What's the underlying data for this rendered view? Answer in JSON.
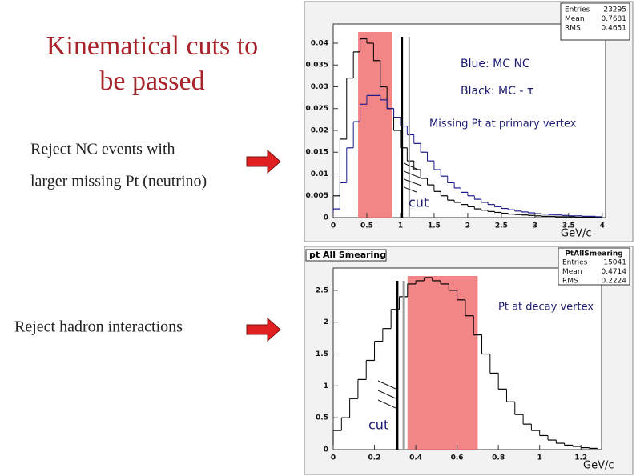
{
  "slide": {
    "title": [
      "Kinematical cuts to",
      "be passed"
    ],
    "notes": [
      [
        "Reject NC events with",
        "larger missing Pt (neutrino)"
      ],
      [
        "Reject hadron interactions"
      ]
    ]
  },
  "chart_data": [
    {
      "type": "histogram",
      "bins": [
        0,
        0.1,
        0.2,
        0.3,
        0.4,
        0.5,
        0.6,
        0.7,
        0.8,
        0.9,
        1,
        1.1,
        1.2,
        1.3,
        1.4,
        1.5,
        1.6,
        1.7,
        1.8,
        1.9,
        2,
        2.1,
        2.2,
        2.3,
        2.4,
        2.5,
        2.6,
        2.7,
        2.8,
        2.9,
        3,
        3.1,
        3.2,
        3.3,
        3.4,
        3.5,
        3.6,
        3.7,
        3.8,
        3.9,
        4
      ],
      "series": [
        {
          "color": "#000000",
          "values": [
            0.005,
            0.018,
            0.032,
            0.038,
            0.041,
            0.04,
            0.036,
            0.03,
            0.025,
            0.02,
            0.016,
            0.013,
            0.011,
            0.009,
            0.0075,
            0.006,
            0.005,
            0.004,
            0.0035,
            0.003,
            0.0025,
            0.002,
            0.0017,
            0.0014,
            0.0012,
            0.001,
            0.0008,
            0.0007,
            0.0006,
            0.0005,
            0.0004,
            0.0003,
            0.0003,
            0.0002,
            0.0002,
            0.0002,
            0.0001,
            0.0001,
            0.0001,
            0.0001
          ]
        },
        {
          "color": "#1a1a8a",
          "values": [
            0.002,
            0.008,
            0.016,
            0.022,
            0.026,
            0.028,
            0.028,
            0.027,
            0.025,
            0.023,
            0.021,
            0.019,
            0.017,
            0.015,
            0.013,
            0.011,
            0.0095,
            0.008,
            0.0068,
            0.0058,
            0.005,
            0.0042,
            0.0035,
            0.003,
            0.0025,
            0.0021,
            0.0018,
            0.0015,
            0.0013,
            0.0011,
            0.0009,
            0.0008,
            0.0007,
            0.0006,
            0.0005,
            0.0004,
            0.0004,
            0.0003,
            0.0003,
            0.0002
          ]
        }
      ],
      "xlim": [
        0,
        4.05
      ],
      "ylim": [
        0,
        0.0444
      ],
      "xticks": [
        0,
        0.5,
        1,
        1.5,
        2,
        2.5,
        3,
        3.5,
        4
      ],
      "yticks": [
        0,
        0.005,
        0.01,
        0.015,
        0.02,
        0.025,
        0.03,
        0.035,
        0.04
      ],
      "band": [
        0.37,
        0.88
      ],
      "cut": 1.02,
      "ref_line": 1.13,
      "stats": {
        "labels": [
          "Entries",
          "Mean",
          "RMS"
        ],
        "values": [
          23295,
          0.7681,
          0.4651
        ]
      },
      "annotations": [
        "Blue: MC  NC",
        "Black: MC - τ",
        "Missing Pt at primary vertex",
        "cut",
        "GeV/c"
      ]
    },
    {
      "type": "histogram",
      "title": "pt All Smearing",
      "bins": [
        0,
        0.04,
        0.08,
        0.12,
        0.16,
        0.2,
        0.24,
        0.28,
        0.32,
        0.36,
        0.4,
        0.44,
        0.48,
        0.52,
        0.56,
        0.6,
        0.64,
        0.68,
        0.72,
        0.76,
        0.8,
        0.84,
        0.88,
        0.92,
        0.96,
        1,
        1.04,
        1.08,
        1.12,
        1.16,
        1.2,
        1.24,
        1.28
      ],
      "series": [
        {
          "color": "#000000",
          "values": [
            0.3,
            0.5,
            0.8,
            1.1,
            1.4,
            1.7,
            1.9,
            2.2,
            2.4,
            2.6,
            2.65,
            2.7,
            2.65,
            2.6,
            2.5,
            2.35,
            2.1,
            1.8,
            1.5,
            1.2,
            0.95,
            0.75,
            0.55,
            0.4,
            0.3,
            0.22,
            0.15,
            0.1,
            0.07,
            0.05,
            0.03,
            0.02
          ]
        }
      ],
      "xlim": [
        0,
        1.3
      ],
      "ylim": [
        0,
        2.85
      ],
      "xticks": [
        0,
        0.2,
        0.4,
        0.6,
        0.8,
        1,
        1.2
      ],
      "yticks": [
        0,
        0.5,
        1,
        1.5,
        2,
        2.5
      ],
      "band": [
        0.36,
        0.7
      ],
      "cut": 0.31,
      "ref_line": 0.34,
      "stats": {
        "name": "PtAllSmearing",
        "labels": [
          "Entries",
          "Mean",
          "RMS"
        ],
        "values": [
          15041,
          0.4714,
          0.2224
        ]
      },
      "annotations": [
        "Pt at decay vertex",
        "cut",
        "GeV/c"
      ]
    }
  ]
}
